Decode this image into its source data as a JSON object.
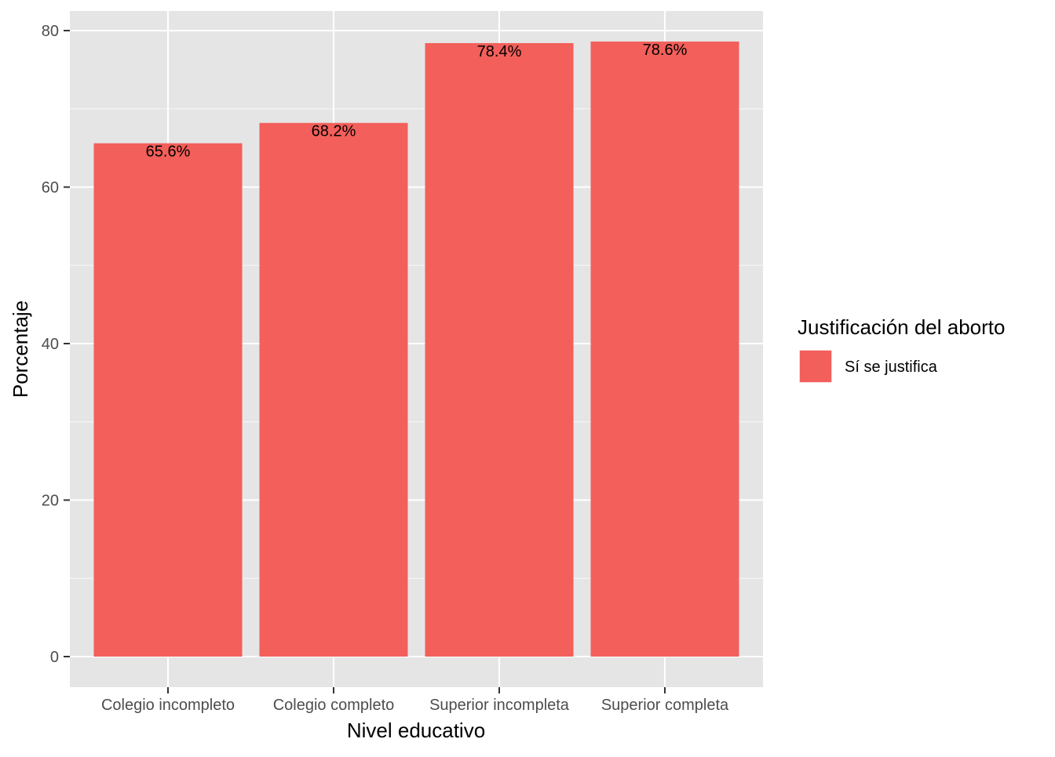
{
  "chart_data": {
    "type": "bar",
    "categories": [
      "Colegio incompleto",
      "Colegio completo",
      "Superior incompleta",
      "Superior completa"
    ],
    "series": [
      {
        "name": "Sí se justifica",
        "values": [
          65.6,
          68.2,
          78.4,
          78.6
        ]
      }
    ],
    "data_labels": [
      "65.6%",
      "68.2%",
      "78.4%",
      "78.6%"
    ],
    "xlabel": "Nivel educativo",
    "ylabel": "Porcentaje",
    "ylim": [
      0,
      82.4
    ],
    "y_ticks": [
      0,
      20,
      40,
      60,
      80
    ],
    "y_tick_labels": [
      "0",
      "20",
      "40",
      "60",
      "80"
    ],
    "grid": true,
    "legend": {
      "title": "Justificación del aborto",
      "placement": "right",
      "entries": [
        "Sí se justifica"
      ]
    },
    "colors": {
      "bar": "#F35F5A",
      "panel_background": "#E5E5E5",
      "grid": "#FFFFFF"
    }
  }
}
